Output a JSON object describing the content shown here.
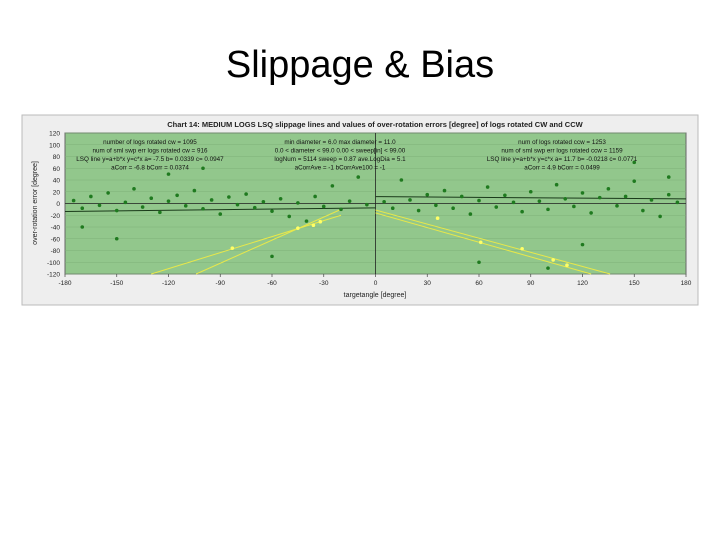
{
  "slide_title": "Slippage & Bias",
  "chart_data": {
    "type": "scatter",
    "title": "Chart 14:  MEDIUM LOGS   LSQ slippage lines and values of over-rotation errors [degree] of logs rotated CW and CCW",
    "x_label": "targetangle [degree]",
    "y_label": "over-rotation error [degree]",
    "xlim": [
      -180,
      180
    ],
    "ylim": [
      -120,
      120
    ],
    "xticks": [
      -180,
      -150,
      -120,
      -90,
      -60,
      -30,
      0,
      30,
      60,
      90,
      120,
      150,
      180
    ],
    "yticks": [
      120,
      100,
      80,
      60,
      40,
      20,
      0,
      -20,
      -40,
      -60,
      -80,
      -100,
      -120
    ],
    "background": "#92c78c",
    "annotations": [
      [
        "number of logs rotated cw = 1095",
        "num of sml swp err logs rotated cw = 916",
        "LSQ line y=a+b*x   y=c*x    a= -7.5   b= 0.0339   c= 0.0947",
        "aCorr = -6.8      bCorr = 0.0374"
      ],
      [
        "min diameter = 6.0    max diameter = 11.0",
        "0.0 < diameter < 99.0    0.00 < sweep[in] < 99.00",
        "logNum = 5114    sweep = 0.87   ave.LogDia = 5.1",
        "aCorrAve = -1    bCorrAve100 = -1"
      ],
      [
        "num of logs rotated ccw = 1253",
        "num of sml swp err logs rotated ccw = 1159",
        "LSQ line y=a+b*x   y=c*x    a= 11.7   b= -0.0218   c= 0.0771",
        "aCorr = 4.9      bCorr = 0.0499"
      ]
    ],
    "series": [
      {
        "color": "#1f7a1f",
        "x": [
          -175,
          -170,
          -165,
          -160,
          -155,
          -150,
          -145,
          -140,
          -135,
          -130,
          -125,
          -120,
          -115,
          -110,
          -105,
          -100,
          -95,
          -90,
          -85,
          -80,
          -75,
          -70,
          -65,
          -60,
          -55,
          -50,
          -45,
          -40,
          -35,
          -30,
          -25,
          -20,
          -15,
          -10,
          -5,
          5,
          10,
          15,
          20,
          25,
          30,
          35,
          40,
          45,
          50,
          55,
          60,
          65,
          70,
          75,
          80,
          85,
          90,
          95,
          100,
          105,
          110,
          115,
          120,
          125,
          130,
          135,
          140,
          145,
          150,
          155,
          160,
          165,
          170,
          175,
          -150,
          -120,
          -60,
          60,
          120,
          150,
          -170,
          170,
          -100,
          100
        ],
        "values": [
          5,
          -8,
          12,
          -3,
          18,
          -12,
          2,
          25,
          -6,
          9,
          -15,
          4,
          14,
          -4,
          22,
          -9,
          6,
          -18,
          11,
          -2,
          16,
          -7,
          3,
          -13,
          8,
          -22,
          1,
          -30,
          12,
          -5,
          30,
          -10,
          4,
          45,
          -2,
          3,
          -8,
          40,
          6,
          -12,
          15,
          -3,
          22,
          -8,
          12,
          -18,
          5,
          28,
          -6,
          14,
          2,
          -14,
          20,
          4,
          -10,
          32,
          8,
          -5,
          18,
          -16,
          10,
          25,
          -4,
          12,
          38,
          -12,
          6,
          -22,
          15,
          2,
          -60,
          50,
          -90,
          -100,
          -70,
          70,
          -40,
          45,
          60,
          -110
        ]
      },
      {
        "color": "#ffff66",
        "x": [
          -83,
          -45,
          -36,
          -32,
          36,
          61,
          85,
          103,
          111
        ],
        "values": [
          -76,
          -42,
          -37,
          -31,
          -25,
          -66,
          -77,
          -96,
          -105
        ]
      }
    ],
    "lines": [
      {
        "color": "#e8e84a",
        "x": [
          -104,
          -20
        ],
        "values": [
          -120,
          -10
        ]
      },
      {
        "color": "#e8e84a",
        "x": [
          -130,
          -20
        ],
        "values": [
          -120,
          -20
        ]
      },
      {
        "color": "#e8e84a",
        "x": [
          0,
          136
        ],
        "values": [
          -11,
          -120
        ]
      },
      {
        "color": "#e8e84a",
        "x": [
          0,
          125
        ],
        "values": [
          -16,
          -120
        ]
      },
      {
        "color": "#1a3a1a",
        "x": [
          -180,
          0
        ],
        "values": [
          -13.6,
          -7.5
        ]
      },
      {
        "color": "#1a3a1a",
        "x": [
          0,
          180
        ],
        "values": [
          11.7,
          7.8
        ]
      }
    ]
  }
}
